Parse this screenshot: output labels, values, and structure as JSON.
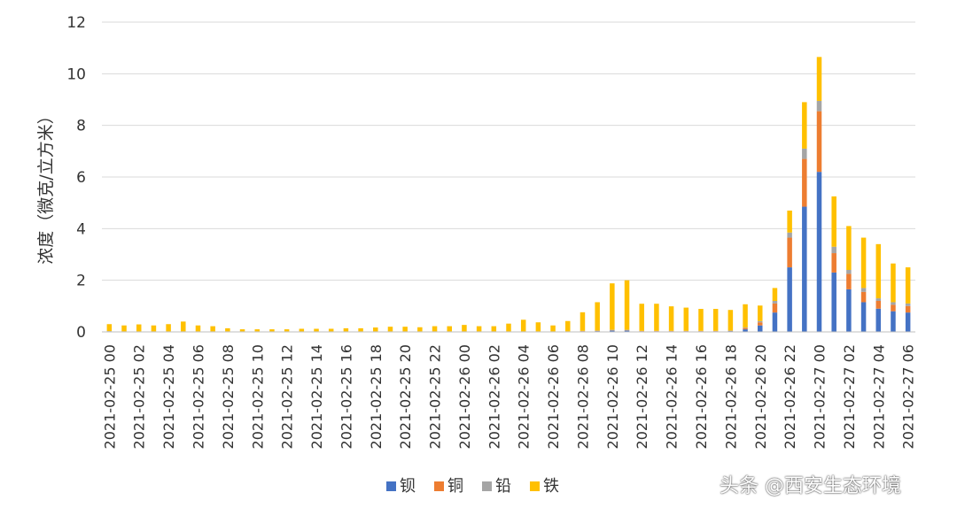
{
  "chart_data": {
    "type": "bar",
    "stacked": true,
    "ylabel": "浓度（微克/立方米）",
    "ylim": [
      0,
      12
    ],
    "yticks": [
      "0",
      "2",
      "4",
      "6",
      "8",
      "10",
      "12"
    ],
    "grid": true,
    "legend_position": "bottom",
    "x": [
      "2021-02-25 00",
      "2021-02-25 01",
      "2021-02-25 02",
      "2021-02-25 03",
      "2021-02-25 04",
      "2021-02-25 05",
      "2021-02-25 06",
      "2021-02-25 07",
      "2021-02-25 08",
      "2021-02-25 09",
      "2021-02-25 10",
      "2021-02-25 11",
      "2021-02-25 12",
      "2021-02-25 13",
      "2021-02-25 14",
      "2021-02-25 15",
      "2021-02-25 16",
      "2021-02-25 17",
      "2021-02-25 18",
      "2021-02-25 19",
      "2021-02-25 20",
      "2021-02-25 21",
      "2021-02-25 22",
      "2021-02-25 23",
      "2021-02-26 00",
      "2021-02-26 01",
      "2021-02-26 02",
      "2021-02-26 03",
      "2021-02-26 04",
      "2021-02-26 05",
      "2021-02-26 06",
      "2021-02-26 07",
      "2021-02-26 08",
      "2021-02-26 09",
      "2021-02-26 10",
      "2021-02-26 11",
      "2021-02-26 12",
      "2021-02-26 13",
      "2021-02-26 14",
      "2021-02-26 15",
      "2021-02-26 16",
      "2021-02-26 17",
      "2021-02-26 18",
      "2021-02-26 19",
      "2021-02-26 20",
      "2021-02-26 21",
      "2021-02-26 22",
      "2021-02-26 23",
      "2021-02-27 00",
      "2021-02-27 01",
      "2021-02-27 02",
      "2021-02-27 03",
      "2021-02-27 04",
      "2021-02-27 05",
      "2021-02-27 06"
    ],
    "xtick_labels": [
      "2021-02-25 00",
      "2021-02-25 02",
      "2021-02-25 04",
      "2021-02-25 06",
      "2021-02-25 08",
      "2021-02-25 10",
      "2021-02-25 12",
      "2021-02-25 14",
      "2021-02-25 16",
      "2021-02-25 18",
      "2021-02-25 20",
      "2021-02-25 22",
      "2021-02-26 00",
      "2021-02-26 02",
      "2021-02-26 04",
      "2021-02-26 06",
      "2021-02-26 08",
      "2021-02-26 10",
      "2021-02-26 12",
      "2021-02-26 14",
      "2021-02-26 16",
      "2021-02-26 18",
      "2021-02-26 20",
      "2021-02-26 22",
      "2021-02-27 00",
      "2021-02-27 02",
      "2021-02-27 04",
      "2021-02-27 06"
    ],
    "series": [
      {
        "name": "钡",
        "color": "#4472C4",
        "values": [
          0.02,
          0.01,
          0.01,
          0.01,
          0.01,
          0.01,
          0.01,
          0.01,
          0.01,
          0.01,
          0.01,
          0.01,
          0.01,
          0.01,
          0.01,
          0.01,
          0.01,
          0.01,
          0.01,
          0.01,
          0.01,
          0.01,
          0.01,
          0.01,
          0.01,
          0.01,
          0.01,
          0.01,
          0.01,
          0.01,
          0.01,
          0.01,
          0.02,
          0.03,
          0.05,
          0.05,
          0.02,
          0.02,
          0.02,
          0.02,
          0.02,
          0.02,
          0.03,
          0.1,
          0.25,
          0.75,
          2.5,
          4.85,
          6.2,
          2.3,
          1.65,
          1.15,
          0.9,
          0.8,
          0.75
        ]
      },
      {
        "name": "铜",
        "color": "#ED7D31",
        "values": [
          0,
          0,
          0,
          0,
          0,
          0,
          0,
          0,
          0,
          0,
          0,
          0,
          0,
          0,
          0,
          0,
          0,
          0,
          0,
          0,
          0,
          0,
          0,
          0,
          0,
          0,
          0,
          0,
          0,
          0,
          0,
          0,
          0.01,
          0.01,
          0.01,
          0.01,
          0.01,
          0.01,
          0.01,
          0.01,
          0.01,
          0.01,
          0.01,
          0.05,
          0.12,
          0.35,
          1.15,
          1.85,
          2.35,
          0.75,
          0.6,
          0.4,
          0.3,
          0.25,
          0.25
        ]
      },
      {
        "name": "铅",
        "color": "#A5A5A5",
        "values": [
          0.01,
          0.01,
          0.01,
          0.01,
          0.01,
          0.01,
          0.01,
          0.01,
          0.01,
          0.01,
          0.01,
          0.01,
          0.01,
          0.01,
          0.01,
          0.01,
          0.01,
          0.01,
          0.01,
          0.01,
          0.01,
          0.01,
          0.01,
          0.01,
          0.01,
          0.01,
          0.01,
          0.01,
          0.01,
          0.01,
          0.01,
          0.01,
          0.01,
          0.01,
          0.02,
          0.02,
          0.01,
          0.01,
          0.01,
          0.01,
          0.01,
          0.01,
          0.01,
          0.02,
          0.05,
          0.1,
          0.2,
          0.4,
          0.4,
          0.25,
          0.15,
          0.15,
          0.1,
          0.1,
          0.1
        ]
      },
      {
        "name": "铁",
        "color": "#FFC000",
        "values": [
          0.27,
          0.23,
          0.27,
          0.23,
          0.28,
          0.38,
          0.23,
          0.2,
          0.12,
          0.08,
          0.08,
          0.08,
          0.08,
          0.1,
          0.1,
          0.1,
          0.12,
          0.12,
          0.15,
          0.18,
          0.18,
          0.16,
          0.2,
          0.2,
          0.25,
          0.2,
          0.2,
          0.3,
          0.45,
          0.35,
          0.23,
          0.4,
          0.72,
          1.1,
          1.8,
          1.92,
          1.05,
          1.05,
          0.95,
          0.9,
          0.85,
          0.85,
          0.8,
          0.9,
          0.6,
          0.5,
          0.85,
          1.8,
          1.7,
          1.95,
          1.7,
          1.95,
          2.1,
          1.5,
          1.4
        ]
      }
    ]
  },
  "watermark": "头条 @西安生态环境"
}
